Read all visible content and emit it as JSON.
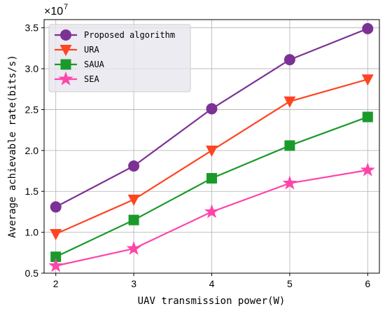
{
  "chart_data": {
    "type": "line",
    "xlabel": "UAV transmission power(W)",
    "ylabel": "Average achievable rate(bits/s)",
    "y_multiplier": "×10",
    "y_exponent": "7",
    "x": [
      2,
      3,
      4,
      5,
      6
    ],
    "xlim": [
      1.85,
      6.15
    ],
    "ylim": [
      0.5,
      3.6
    ],
    "y_ticks": [
      "0.5",
      "1.0",
      "1.5",
      "2.0",
      "2.5",
      "3.0",
      "3.5"
    ],
    "grid": true,
    "legend_position": "top-left",
    "series": [
      {
        "name": "Proposed algorithm",
        "color": "#7B3294",
        "marker": "circle",
        "values": [
          1.31,
          1.81,
          2.51,
          3.11,
          3.49
        ]
      },
      {
        "name": "URA",
        "color": "#FF4422",
        "marker": "triangle-down",
        "values": [
          0.98,
          1.4,
          2.0,
          2.6,
          2.87
        ]
      },
      {
        "name": "SAUA",
        "color": "#1A9A2A",
        "marker": "square",
        "values": [
          0.7,
          1.15,
          1.66,
          2.06,
          2.41
        ]
      },
      {
        "name": "SEA",
        "color": "#FF44AA",
        "marker": "star",
        "values": [
          0.59,
          0.8,
          1.25,
          1.6,
          1.76
        ]
      }
    ]
  }
}
